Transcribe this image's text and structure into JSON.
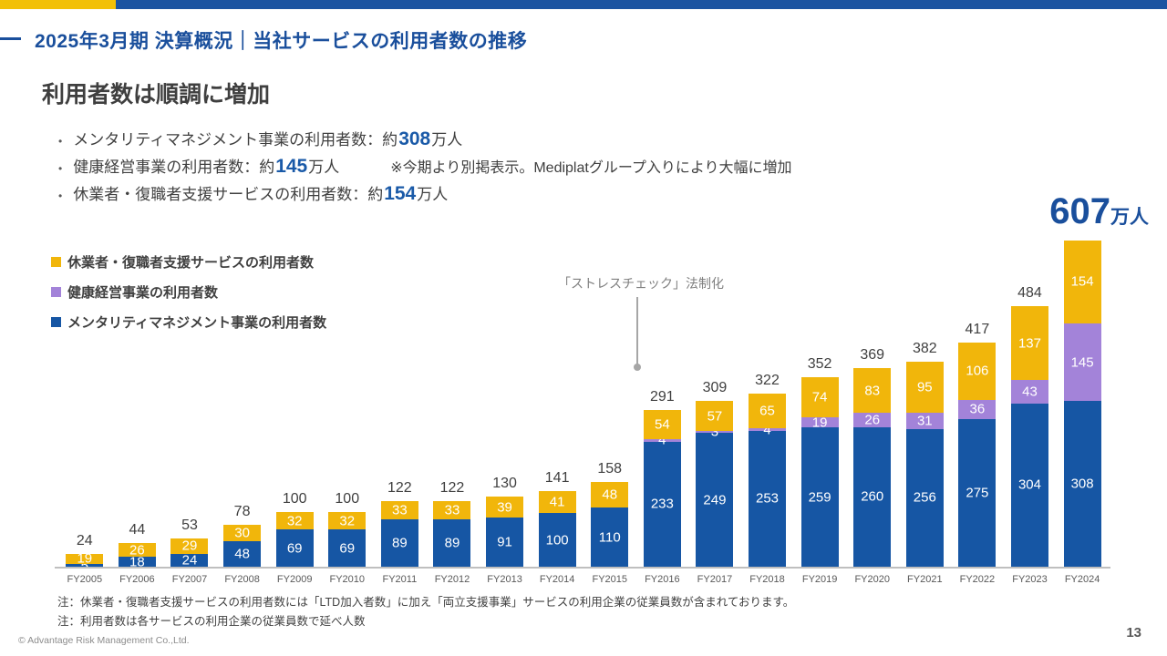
{
  "header": {
    "title": "2025年3月期 決算概況｜当社サービスの利用者数の推移",
    "accent_yellow": "#F2C007",
    "accent_blue": "#1A53A1"
  },
  "main": {
    "heading": "利用者数は順調に増加",
    "bullets": [
      {
        "pre": "メンタリティマネジメント事業の利用者数：約",
        "value": "308",
        "unit": "万人",
        "note": ""
      },
      {
        "pre": "健康経営事業の利用者数：約",
        "value": "145",
        "unit": "万人",
        "note": "※今期より別掲表示。Mediplatグループ入りにより大幅に増加"
      },
      {
        "pre": "休業者・復職者支援サービスの利用者数：約",
        "value": "154",
        "unit": "万人",
        "note": ""
      }
    ]
  },
  "legend": [
    {
      "label": "休業者・復職者支援サービスの利用者数",
      "color": "#F1B60B"
    },
    {
      "label": "健康経営事業の利用者数",
      "color": "#A383D9"
    },
    {
      "label": "メンタリティマネジメント事業の利用者数",
      "color": "#1656A4"
    }
  ],
  "annotation": {
    "text": "「ストレスチェック」法制化"
  },
  "highlight": {
    "category": "FY2024",
    "value": "607",
    "unit": "万人"
  },
  "chart_data": {
    "type": "bar",
    "stacked": true,
    "categories": [
      "FY2005",
      "FY2006",
      "FY2007",
      "FY2008",
      "FY2009",
      "FY2010",
      "FY2011",
      "FY2012",
      "FY2013",
      "FY2014",
      "FY2015",
      "FY2016",
      "FY2017",
      "FY2018",
      "FY2019",
      "FY2020",
      "FY2021",
      "FY2022",
      "FY2023",
      "FY2024"
    ],
    "series": [
      {
        "name": "メンタリティマネジメント事業の利用者数",
        "color": "#1656A4",
        "values": [
          5,
          18,
          24,
          48,
          69,
          69,
          89,
          89,
          91,
          100,
          110,
          233,
          249,
          253,
          259,
          260,
          256,
          275,
          304,
          308
        ]
      },
      {
        "name": "健康経営事業の利用者数",
        "color": "#A383D9",
        "values": [
          0,
          0,
          0,
          0,
          0,
          0,
          0,
          0,
          0,
          0,
          0,
          4,
          3,
          4,
          19,
          26,
          31,
          36,
          43,
          145
        ]
      },
      {
        "name": "休業者・復職者支援サービスの利用者数",
        "color": "#F1B60B",
        "values": [
          19,
          26,
          29,
          30,
          32,
          32,
          33,
          33,
          39,
          41,
          48,
          54,
          57,
          65,
          74,
          83,
          95,
          106,
          137,
          154
        ]
      }
    ],
    "totals": [
      24,
      44,
      53,
      78,
      100,
      100,
      122,
      122,
      130,
      141,
      158,
      291,
      309,
      322,
      352,
      369,
      382,
      417,
      484,
      607
    ],
    "unit": "万人",
    "ylabel": "",
    "xlabel": "",
    "ylim": [
      0,
      650
    ],
    "grid": false,
    "legend_position": "top-left"
  },
  "notes": [
    "注：休業者・復職者支援サービスの利用者数には「LTD加入者数」に加え「両立支援事業」サービスの利用企業の従業員数が含まれております。",
    "注：利用者数は各サービスの利用企業の従業員数で延べ人数"
  ],
  "footer": {
    "copyright": "© Advantage Risk Management Co.,Ltd.",
    "page": "13"
  }
}
